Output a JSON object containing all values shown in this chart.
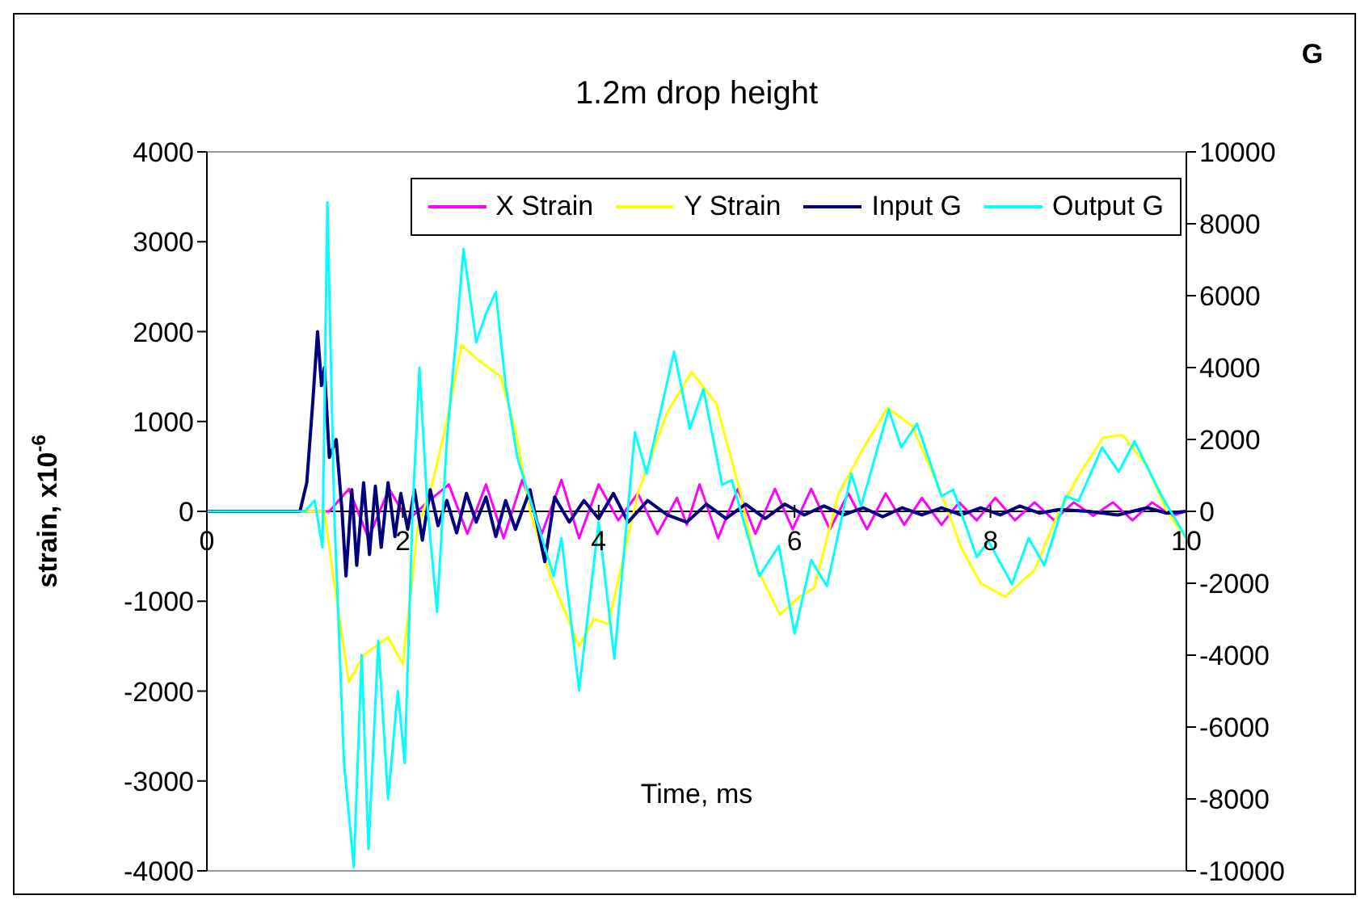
{
  "chart_data": {
    "type": "line",
    "title": "1.2m drop height",
    "xlabel": "Time, ms",
    "ylabel": "strain, x10$^{-6}$",
    "y2label": "G",
    "xlim": [
      0,
      10
    ],
    "xticks": [
      0,
      2,
      4,
      6,
      8,
      10
    ],
    "ylim": [
      -4000,
      4000
    ],
    "yticks": [
      -4000,
      -3000,
      -2000,
      -1000,
      0,
      1000,
      2000,
      3000,
      4000
    ],
    "y2lim": [
      -10000,
      10000
    ],
    "y2ticks": [
      -10000,
      -8000,
      -6000,
      -4000,
      -2000,
      0,
      2000,
      4000,
      6000,
      8000,
      10000
    ],
    "legend": "top right",
    "series": [
      {
        "name": "X Strain",
        "color": "#ff00ff",
        "x": [
          0,
          1.25,
          1.45,
          1.65,
          1.86,
          2.05,
          2.25,
          2.47,
          2.66,
          2.85,
          3.03,
          3.22,
          3.42,
          3.62,
          3.8,
          4.0,
          4.2,
          4.4,
          4.6,
          4.8,
          4.9,
          5.03,
          5.22,
          5.42,
          5.6,
          5.8,
          5.98,
          6.17,
          6.36,
          6.55,
          6.74,
          6.93,
          7.12,
          7.3,
          7.5,
          7.68,
          7.86,
          8.05,
          8.25,
          8.45,
          8.65,
          8.85,
          9.05,
          9.25,
          9.45,
          9.65,
          9.85,
          10
        ],
        "values": [
          0,
          0,
          250,
          -300,
          250,
          -100,
          100,
          300,
          -250,
          300,
          -300,
          350,
          -250,
          350,
          -300,
          300,
          -100,
          200,
          -250,
          150,
          -150,
          300,
          -300,
          250,
          -250,
          250,
          -200,
          250,
          -200,
          200,
          -200,
          200,
          -150,
          150,
          -150,
          100,
          -100,
          150,
          -100,
          100,
          -100,
          100,
          -50,
          100,
          -100,
          100,
          -50,
          0
        ]
      },
      {
        "name": "Y Strain",
        "color": "#ffff00",
        "x": [
          0,
          1.2,
          1.3,
          1.45,
          1.6,
          1.85,
          2.0,
          2.15,
          2.3,
          2.45,
          2.6,
          2.75,
          3.0,
          3.15,
          3.3,
          3.5,
          3.8,
          3.95,
          4.1,
          4.4,
          4.7,
          4.95,
          5.2,
          5.45,
          5.6,
          5.85,
          6.05,
          6.2,
          6.45,
          6.7,
          6.95,
          7.2,
          7.5,
          7.7,
          7.9,
          8.15,
          8.45,
          8.7,
          8.9,
          9.15,
          9.35,
          9.6,
          9.8,
          10
        ],
        "values": [
          0,
          0,
          -800,
          -1900,
          -1600,
          -1400,
          -1700,
          -200,
          300,
          1000,
          1850,
          1700,
          1500,
          900,
          0,
          -700,
          -1500,
          -1200,
          -1250,
          200,
          1100,
          1550,
          1200,
          200,
          -600,
          -1150,
          -950,
          -850,
          200,
          700,
          1150,
          950,
          200,
          -400,
          -800,
          -950,
          -650,
          0,
          400,
          820,
          850,
          500,
          0,
          -300
        ]
      },
      {
        "name": "Input G",
        "color": "#000080",
        "axis": "y2",
        "x": [
          0,
          0.95,
          1.02,
          1.08,
          1.13,
          1.17,
          1.2,
          1.25,
          1.32,
          1.38,
          1.42,
          1.48,
          1.53,
          1.6,
          1.66,
          1.72,
          1.78,
          1.85,
          1.92,
          1.98,
          2.05,
          2.12,
          2.2,
          2.28,
          2.36,
          2.45,
          2.55,
          2.65,
          2.75,
          2.85,
          2.95,
          3.05,
          3.15,
          3.3,
          3.45,
          3.55,
          3.7,
          3.85,
          4.0,
          4.15,
          4.3,
          4.5,
          4.7,
          4.9,
          5.1,
          5.3,
          5.5,
          5.7,
          5.9,
          6.1,
          6.3,
          6.5,
          6.7,
          6.9,
          7.1,
          7.3,
          7.5,
          7.7,
          7.9,
          8.1,
          8.3,
          8.5,
          8.7,
          9.0,
          9.3,
          9.6,
          9.8,
          10
        ],
        "values": [
          0,
          0,
          800,
          3000,
          5000,
          3500,
          4000,
          1500,
          2000,
          0,
          -1800,
          600,
          -1500,
          800,
          -1200,
          700,
          -1000,
          800,
          -700,
          500,
          -500,
          600,
          -800,
          600,
          -400,
          300,
          -600,
          500,
          -300,
          400,
          -700,
          300,
          -500,
          600,
          -1400,
          400,
          -300,
          300,
          -200,
          500,
          -300,
          300,
          -100,
          -300,
          200,
          -200,
          200,
          -200,
          200,
          -100,
          150,
          -100,
          100,
          -150,
          100,
          -100,
          100,
          -100,
          100,
          -100,
          150,
          -50,
          50,
          0,
          -100,
          100,
          -50,
          0
        ]
      },
      {
        "name": "Output G",
        "color": "#00ffff",
        "axis": "y2",
        "x": [
          0,
          0.5,
          1.0,
          1.1,
          1.18,
          1.23,
          1.3,
          1.4,
          1.5,
          1.58,
          1.65,
          1.75,
          1.85,
          1.95,
          2.02,
          2.1,
          2.17,
          2.25,
          2.35,
          2.45,
          2.55,
          2.62,
          2.75,
          2.85,
          2.95,
          3.05,
          3.17,
          3.39,
          3.54,
          3.62,
          3.8,
          4.0,
          4.16,
          4.37,
          4.49,
          4.77,
          4.93,
          5.07,
          5.26,
          5.36,
          5.64,
          5.84,
          6.0,
          6.17,
          6.33,
          6.58,
          6.68,
          6.96,
          7.09,
          7.25,
          7.5,
          7.62,
          7.86,
          7.98,
          8.22,
          8.39,
          8.55,
          8.77,
          8.9,
          9.14,
          9.31,
          9.47,
          9.75,
          10
        ],
        "values": [
          0,
          0,
          0,
          300,
          -1000,
          8600,
          0,
          -7000,
          -9900,
          -4000,
          -9400,
          -3600,
          -8000,
          -5000,
          -7000,
          0,
          4000,
          200,
          -2800,
          2000,
          5000,
          7300,
          4700,
          5500,
          6100,
          3500,
          1500,
          -470,
          -1800,
          -740,
          -4980,
          -290,
          -4100,
          2200,
          1050,
          4450,
          2300,
          3400,
          740,
          870,
          -1800,
          -960,
          -3400,
          -1360,
          -2080,
          1050,
          150,
          2830,
          1780,
          2440,
          420,
          600,
          -1270,
          -830,
          -2030,
          -740,
          -1500,
          420,
          290,
          1780,
          1100,
          1950,
          420,
          -740
        ]
      }
    ]
  }
}
